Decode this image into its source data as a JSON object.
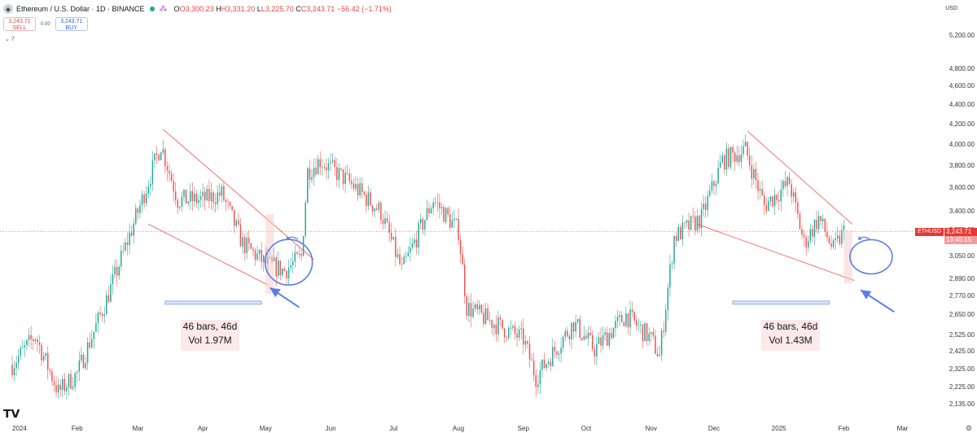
{
  "header": {
    "title": "Ethereum / U.S. Dollar · 1D · BINANCE",
    "open": "O3,300.23",
    "high": "H3,331.20",
    "low": "L3,225.70",
    "close": "C3,243.71",
    "change": "−56.42 (−1.71%)"
  },
  "trade": {
    "sell_price": "3,243.71",
    "sell_label": "SELL",
    "spread": "0.00",
    "buy_price": "3,243.71",
    "buy_label": "BUY"
  },
  "indicator_toggle": "7",
  "axis": {
    "currency": "USD"
  },
  "last_price": {
    "symbol": "ETHUSD",
    "price": "3,243.71",
    "countdown": "13:45:15"
  },
  "annotations": {
    "left_box": {
      "line1": "46 bars, 46d",
      "line2": "Vol 1.97M"
    },
    "right_box": {
      "line1": "46 bars, 46d",
      "line2": "Vol 1.43M"
    }
  },
  "colors": {
    "up": "#26a69a",
    "down": "#ef5350",
    "trendline": "#ef5350",
    "annotation": "#5b7fe8"
  },
  "chart_data": {
    "type": "candlestick",
    "title": "",
    "y_scale": "log",
    "ylim": [
      2135,
      5200
    ],
    "y_ticks": [
      5200,
      4800,
      4600,
      4400,
      4200,
      4000,
      3800,
      3600,
      3400,
      3250,
      3050,
      2890,
      2770,
      2650,
      2525,
      2425,
      2325,
      2225,
      2135
    ],
    "y_tick_labels": [
      "5,200.00",
      "4,800.00",
      "4,600.00",
      "4,400.00",
      "4,200.00",
      "4,000.00",
      "3,800.00",
      "3,600.00",
      "3,400.00",
      "3,250.00",
      "3,050.00",
      "2,890.00",
      "2,770.00",
      "2,650.00",
      "2,525.00",
      "2,425.00",
      "2,325.00",
      "2,225.00",
      "2,135.00"
    ],
    "x_labels": [
      "2024",
      "Feb",
      "Mar",
      "Apr",
      "May",
      "Jun",
      "Jul",
      "Aug",
      "Sep",
      "Oct",
      "Nov",
      "Dec",
      "2025",
      "Feb",
      "Mar"
    ],
    "approx_daily_close_path": [
      [
        "2024-01-01",
        2350
      ],
      [
        "2024-01-12",
        2520
      ],
      [
        "2024-01-23",
        2200
      ],
      [
        "2024-02-01",
        2300
      ],
      [
        "2024-02-15",
        2750
      ],
      [
        "2024-03-01",
        3400
      ],
      [
        "2024-03-12",
        4000
      ],
      [
        "2024-03-20",
        3500
      ],
      [
        "2024-04-01",
        3500
      ],
      [
        "2024-04-10",
        3550
      ],
      [
        "2024-04-20",
        3150
      ],
      [
        "2024-05-01",
        3000
      ],
      [
        "2024-05-10",
        2950
      ],
      [
        "2024-05-18",
        3050
      ],
      [
        "2024-05-21",
        3750
      ],
      [
        "2024-05-27",
        3850
      ],
      [
        "2024-06-10",
        3650
      ],
      [
        "2024-06-25",
        3400
      ],
      [
        "2024-07-05",
        2950
      ],
      [
        "2024-07-20",
        3500
      ],
      [
        "2024-08-01",
        3250
      ],
      [
        "2024-08-05",
        2700
      ],
      [
        "2024-08-15",
        2620
      ],
      [
        "2024-09-01",
        2500
      ],
      [
        "2024-09-07",
        2280
      ],
      [
        "2024-09-25",
        2600
      ],
      [
        "2024-10-05",
        2440
      ],
      [
        "2024-10-20",
        2650
      ],
      [
        "2024-11-01",
        2500
      ],
      [
        "2024-11-05",
        2400
      ],
      [
        "2024-11-12",
        3200
      ],
      [
        "2024-11-25",
        3350
      ],
      [
        "2024-12-05",
        3850
      ],
      [
        "2024-12-16",
        3950
      ],
      [
        "2024-12-25",
        3450
      ],
      [
        "2025-01-06",
        3650
      ],
      [
        "2025-01-13",
        3150
      ],
      [
        "2025-01-20",
        3350
      ],
      [
        "2025-01-27",
        3100
      ],
      [
        "2025-02-01",
        3243.71
      ]
    ]
  }
}
